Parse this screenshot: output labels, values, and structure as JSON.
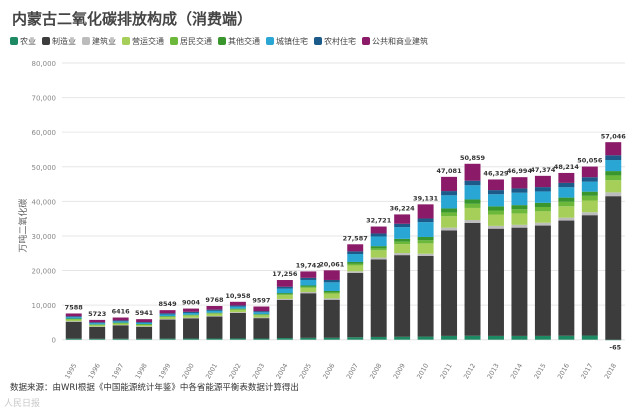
{
  "source_note": "数据来源：由WRI根据《中国能源统计年鉴》中各省能源平衡表数据计算得出",
  "watermark": "人民日报",
  "chart_data": {
    "type": "bar",
    "stacked": true,
    "title": "内蒙古二氧化碳排放构成（消费端）",
    "xlabel": "",
    "ylabel": "万吨二氧化碳",
    "ylim": [
      -5000,
      80000
    ],
    "yticks": [
      0,
      10000,
      20000,
      30000,
      40000,
      50000,
      60000,
      70000,
      80000
    ],
    "ytick_labels": [
      "0",
      "10,000",
      "20,000",
      "30,000",
      "40,000",
      "50,000",
      "60,000",
      "70,000",
      "80,000"
    ],
    "grid": true,
    "legend_position": "top",
    "categories": [
      "1995",
      "1996",
      "1997",
      "1998",
      "1999",
      "2000",
      "2001",
      "2002",
      "2003",
      "2004",
      "2005",
      "2006",
      "2007",
      "2008",
      "2009",
      "2010",
      "2011",
      "2012",
      "2013",
      "2014",
      "2015",
      "2016",
      "2017",
      "2018"
    ],
    "totals": [
      7588,
      5723,
      6416,
      5941,
      8549,
      9004,
      9768,
      10958,
      9597,
      17256,
      19742,
      20061,
      27587,
      32721,
      36224,
      39131,
      47081,
      50859,
      46329,
      46994,
      47374,
      48214,
      50056,
      57046
    ],
    "total_labels": [
      "7588",
      "5723",
      "6416",
      "5941",
      "8549",
      "9004",
      "9768",
      "10,958",
      "9597",
      "17,256",
      "19,742",
      "20,061",
      "27,587",
      "32,721",
      "36,224",
      "39,131",
      "47,081",
      "50,859",
      "46,329",
      "46,994",
      "47,374",
      "48,214",
      "50,056",
      "57,046"
    ],
    "annotation": "-65",
    "series": [
      {
        "name": "农业",
        "color": "#1d8a64",
        "values": [
          300,
          260,
          270,
          260,
          320,
          330,
          340,
          360,
          340,
          480,
          540,
          560,
          700,
          800,
          850,
          900,
          1100,
          1150,
          1100,
          1100,
          1100,
          1150,
          1200,
          -65
        ]
      },
      {
        "name": "制造业",
        "color": "#3c3c3c",
        "values": [
          4900,
          3450,
          3850,
          3500,
          5500,
          5850,
          6350,
          7400,
          5900,
          11000,
          12900,
          11000,
          18600,
          22400,
          23600,
          23300,
          30500,
          32600,
          31000,
          31300,
          31900,
          33300,
          34800,
          41500
        ]
      },
      {
        "name": "建筑业",
        "color": "#bcbcbc",
        "values": [
          150,
          120,
          130,
          120,
          160,
          170,
          180,
          200,
          190,
          300,
          350,
          370,
          480,
          550,
          600,
          650,
          800,
          850,
          800,
          810,
          820,
          830,
          850,
          1100
        ]
      },
      {
        "name": "营运交通",
        "color": "#a6cf5a",
        "values": [
          500,
          400,
          450,
          420,
          560,
          580,
          610,
          660,
          620,
          1100,
          1200,
          1400,
          1700,
          2100,
          2600,
          3000,
          3300,
          3500,
          3300,
          3300,
          3300,
          3300,
          3400,
          3500
        ]
      },
      {
        "name": "居民交通",
        "color": "#6bb83a",
        "values": [
          120,
          100,
          110,
          100,
          130,
          140,
          150,
          160,
          150,
          270,
          300,
          340,
          450,
          550,
          700,
          900,
          1100,
          1200,
          1150,
          1200,
          1250,
          1300,
          1350,
          1400
        ]
      },
      {
        "name": "其他交通",
        "color": "#39962c",
        "values": [
          150,
          120,
          130,
          120,
          160,
          170,
          180,
          200,
          190,
          330,
          380,
          420,
          550,
          650,
          800,
          950,
          1150,
          1250,
          1200,
          1200,
          1200,
          1200,
          1200,
          1250
        ]
      },
      {
        "name": "城镇住宅",
        "color": "#2aa6d4",
        "values": [
          400,
          350,
          380,
          360,
          470,
          490,
          530,
          570,
          540,
          1300,
          1600,
          2500,
          2300,
          2800,
          3400,
          4300,
          3800,
          4100,
          3500,
          3600,
          3300,
          3000,
          2900,
          3200
        ]
      },
      {
        "name": "农村住宅",
        "color": "#1c5a8a",
        "values": [
          280,
          250,
          260,
          240,
          330,
          340,
          350,
          360,
          340,
          540,
          620,
          680,
          760,
          870,
          970,
          1050,
          1220,
          1320,
          1200,
          1230,
          1250,
          1260,
          1280,
          1360
        ]
      },
      {
        "name": "公共和商业建筑",
        "color": "#8b1b68",
        "values": [
          788,
          673,
          836,
          821,
          919,
          934,
          1058,
          1048,
          1327,
          1936,
          1852,
          2791,
          2047,
          2001,
          2704,
          4081,
          4111,
          4889,
          3079,
          3254,
          3254,
          2874,
          3076,
          3801
        ]
      }
    ]
  }
}
